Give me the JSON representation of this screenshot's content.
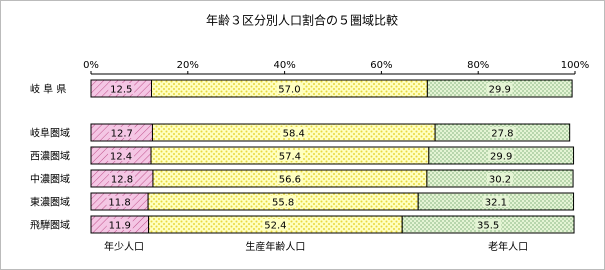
{
  "chart_data": {
    "type": "stacked-bar-100",
    "title": "年齢３区分別人口割合の５圏域比較",
    "categories": [
      "岐 阜 県",
      "岐阜圏域",
      "西濃圏域",
      "中濃圏域",
      "東濃圏域",
      "飛騨圏域"
    ],
    "series": [
      {
        "name": "年少人口",
        "color": "#f4c6e4",
        "values": [
          12.5,
          12.7,
          12.4,
          12.8,
          11.8,
          11.9
        ]
      },
      {
        "name": "生産年齢人口",
        "color": "#ffffc0",
        "values": [
          57,
          58.4,
          57.4,
          56.6,
          55.8,
          52.4
        ],
        "value_labels": [
          "57.0",
          "58.4",
          "57.4",
          "56.6",
          "55.8",
          "52.4"
        ]
      },
      {
        "name": "老年人口",
        "color": "#e4f4d4",
        "values": [
          29.9,
          27.8,
          29.9,
          30.2,
          32.1,
          35.5
        ]
      }
    ],
    "xlim": [
      0,
      100
    ],
    "xticks": [
      {
        "value": 0,
        "label": "0%"
      },
      {
        "value": 20,
        "label": "20%"
      },
      {
        "value": 40,
        "label": "40%"
      },
      {
        "value": 60,
        "label": "60%"
      },
      {
        "value": 80,
        "label": "80%"
      },
      {
        "value": 100,
        "label": "100%"
      }
    ]
  }
}
